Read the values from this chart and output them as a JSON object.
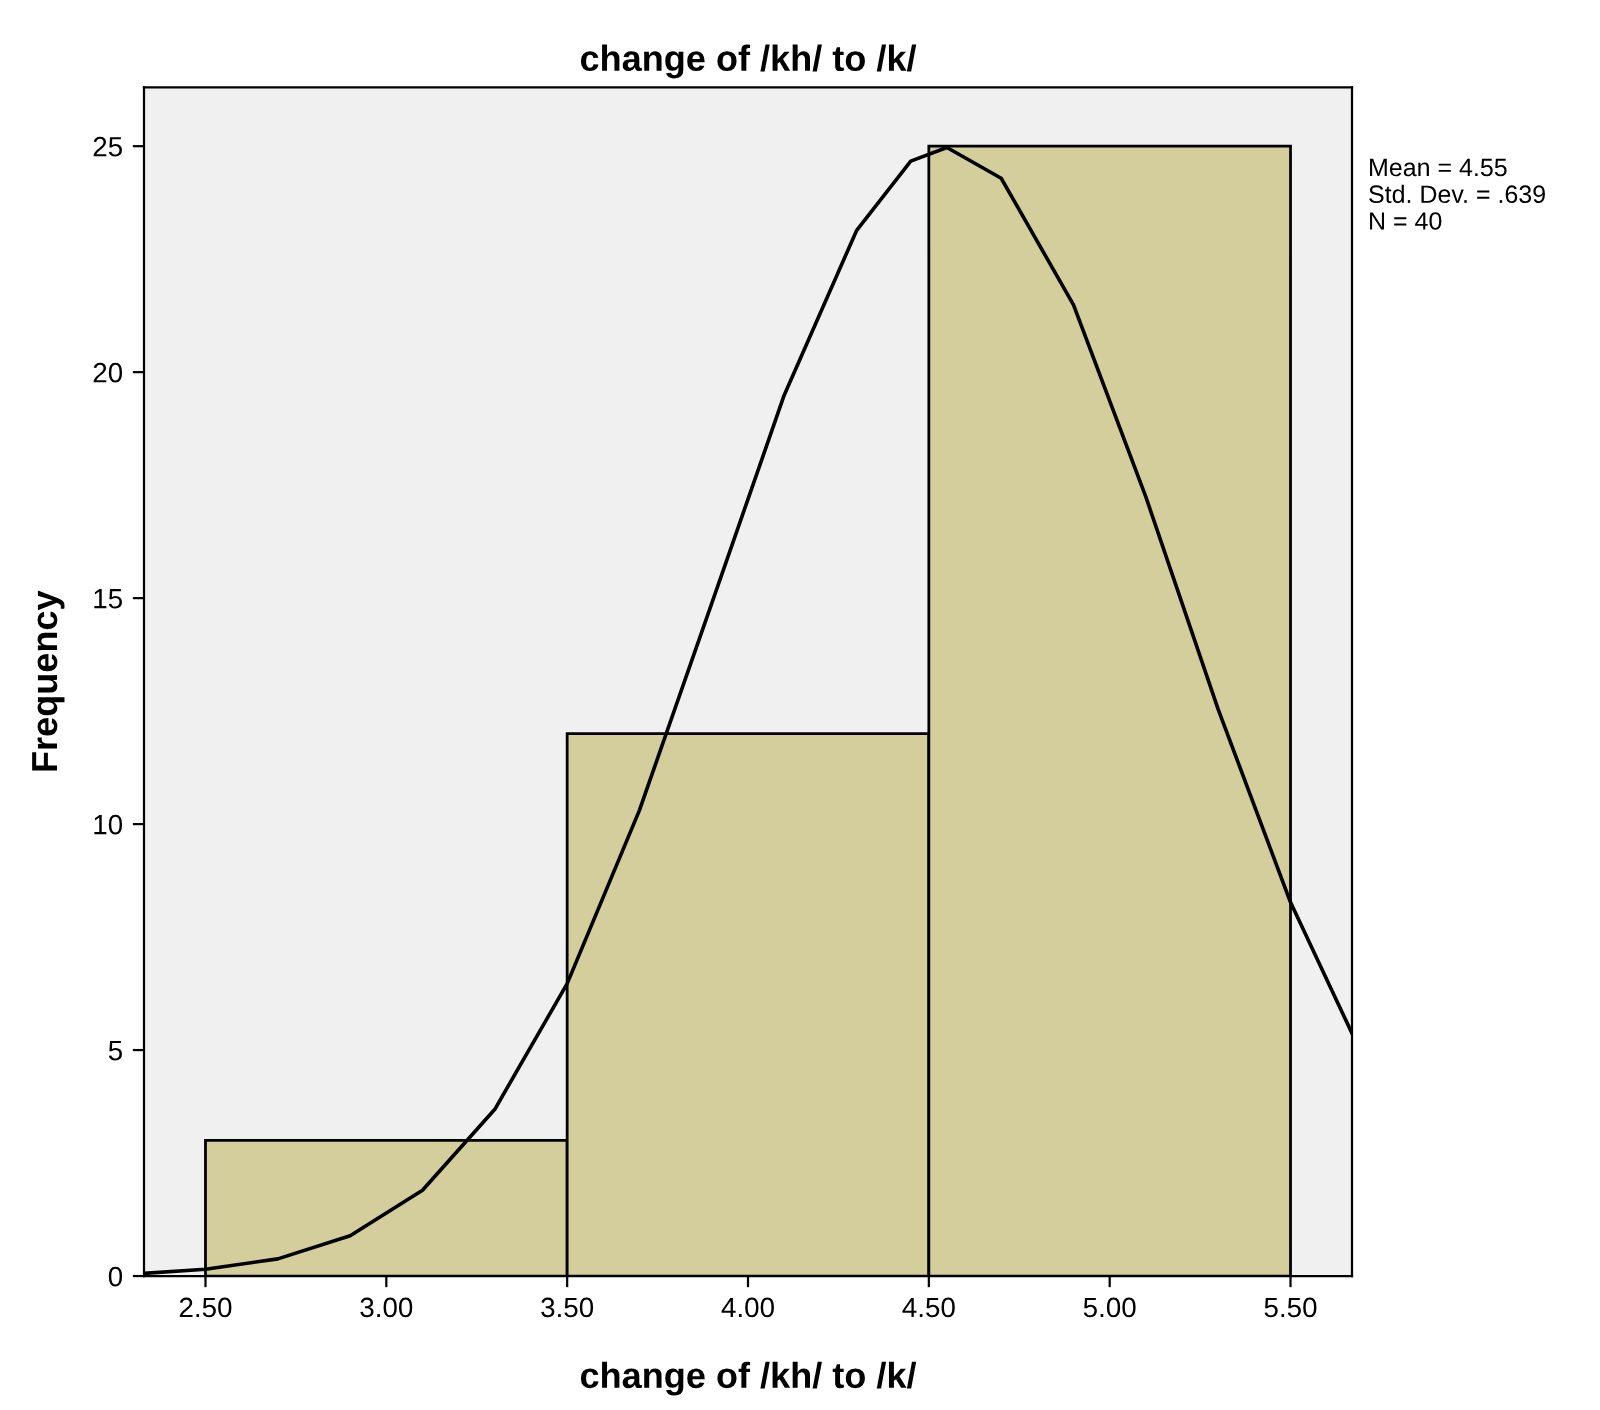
{
  "chart_data": {
    "type": "histogram",
    "title": "change of /kh/ to /k/",
    "xlabel": "change of /kh/ to /k/",
    "ylabel": "Frequency",
    "bins": [
      2.5,
      3.5,
      4.5,
      5.5
    ],
    "values": [
      3,
      12,
      25
    ],
    "color": "#d3ce9b",
    "series": [
      {
        "type": "line",
        "color": "#000000",
        "x": [
          2.33,
          2.5,
          2.7,
          2.9,
          3.1,
          3.3,
          3.5,
          3.7,
          3.9,
          4.1,
          4.3,
          4.45,
          4.55,
          4.7,
          4.9,
          5.1,
          5.3,
          5.5,
          5.67
        ],
        "values": [
          0.06,
          0.15,
          0.38,
          0.89,
          1.9,
          3.69,
          6.47,
          10.31,
          14.89,
          19.49,
          23.13,
          24.67,
          24.97,
          24.29,
          21.49,
          17.24,
          12.54,
          8.27,
          5.37
        ]
      }
    ],
    "xlim": [
      2.33,
      5.67
    ],
    "ylim": [
      0,
      26.3
    ],
    "xticks": [
      {
        "value": 2.5,
        "label": "2.50"
      },
      {
        "value": 3.0,
        "label": "3.00"
      },
      {
        "value": 3.5,
        "label": "3.50"
      },
      {
        "value": 4.0,
        "label": "4.00"
      },
      {
        "value": 4.5,
        "label": "4.50"
      },
      {
        "value": 5.0,
        "label": "5.00"
      },
      {
        "value": 5.5,
        "label": "5.50"
      }
    ],
    "yticks": [
      0,
      5,
      10,
      15,
      20,
      25
    ],
    "annotations": [
      "Mean = 4.55",
      "Std. Dev. = .639",
      "N = 40"
    ],
    "grid": false
  }
}
